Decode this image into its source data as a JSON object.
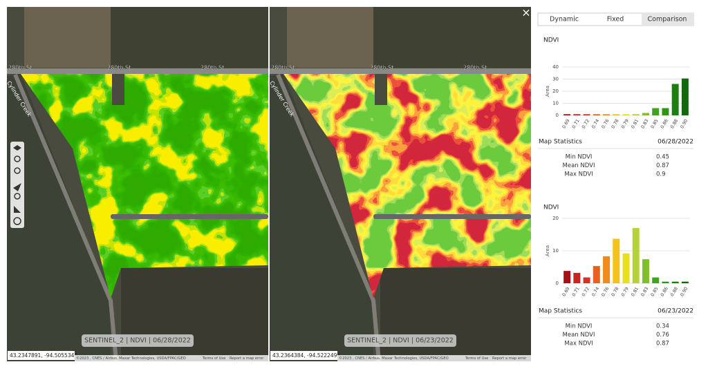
{
  "close": "×",
  "tabs": [
    "Dynamic",
    "Fixed",
    "Comparison"
  ],
  "maps": [
    {
      "caption": "SENTINEL_2  |  NDVI  |  06/28/2022",
      "coordinates": "43.2347891, -94.5055341",
      "roads": [
        "280th St",
        "280th St",
        "280th St"
      ],
      "creek": "Cylinder Creek"
    },
    {
      "caption": "SENTINEL_2  |  NDVI  |  06/23/2022",
      "coordinates": "43.2364384, -94.5222496",
      "roads": [
        "280th St",
        "280th St",
        "280th St"
      ],
      "creek": "Cylinder Creek"
    }
  ],
  "attribution": [
    "©2023 , CNES / Airbus, Maxar Technologies, USDA/FPAC/GEO",
    "Terms of Use",
    "Report a map error"
  ],
  "charts": [
    {
      "type": "bar",
      "title": "NDVI",
      "y_label": "Area",
      "categories": [
        "0.69",
        "0.71",
        "0.72",
        "0.74",
        "0.76",
        "0.78",
        "0.79",
        "0.81",
        "0.83",
        "0.85",
        "0.86",
        "0.88",
        "0.90"
      ],
      "values": [
        1,
        1,
        1,
        1,
        1,
        1,
        1,
        1,
        2,
        6,
        6,
        26,
        30.5
      ],
      "colors": [
        "#a50f15",
        "#c8261e",
        "#d73027",
        "#e8621f",
        "#f08a1c",
        "#f4c21b",
        "#e8df1f",
        "#b5d334",
        "#7fbf2f",
        "#41a31f",
        "#2f9418",
        "#1d7f12",
        "#11690d"
      ],
      "ylim": [
        0,
        40
      ],
      "yticks": [
        0,
        10,
        20,
        30,
        40
      ],
      "grid": true,
      "stats_title": "Map Statistics",
      "stats_date": "06/28/2022",
      "stats": [
        {
          "label": "Min NDVI",
          "value": 0.45
        },
        {
          "label": "Mean NDVI",
          "value": 0.87
        },
        {
          "label": "Max NDVI",
          "value": 0.9
        }
      ]
    },
    {
      "type": "bar",
      "title": "NDVI",
      "y_label": "Area",
      "categories": [
        "0.69",
        "0.71",
        "0.72",
        "0.74",
        "0.76",
        "0.78",
        "0.79",
        "0.81",
        "0.83",
        "0.85",
        "0.86",
        "0.88",
        "0.90"
      ],
      "values": [
        3.8,
        3.2,
        1.8,
        5.3,
        8.3,
        13.7,
        9.2,
        17,
        7.4,
        1.8,
        0.5,
        0.5,
        0.5
      ],
      "colors": [
        "#a50f15",
        "#c8261e",
        "#d73027",
        "#e8621f",
        "#f08a1c",
        "#f4c21b",
        "#e8df1f",
        "#b5d334",
        "#7fbf2f",
        "#41a31f",
        "#2f9418",
        "#1d7f12",
        "#11690d"
      ],
      "ylim": [
        0,
        20
      ],
      "yticks": [
        0,
        10,
        20
      ],
      "grid": true,
      "stats_title": "Map Statistics",
      "stats_date": "06/23/2022",
      "stats": [
        {
          "label": "Min NDVI",
          "value": 0.34
        },
        {
          "label": "Mean NDVI",
          "value": 0.76
        },
        {
          "label": "Max NDVI",
          "value": 0.87
        }
      ]
    }
  ]
}
